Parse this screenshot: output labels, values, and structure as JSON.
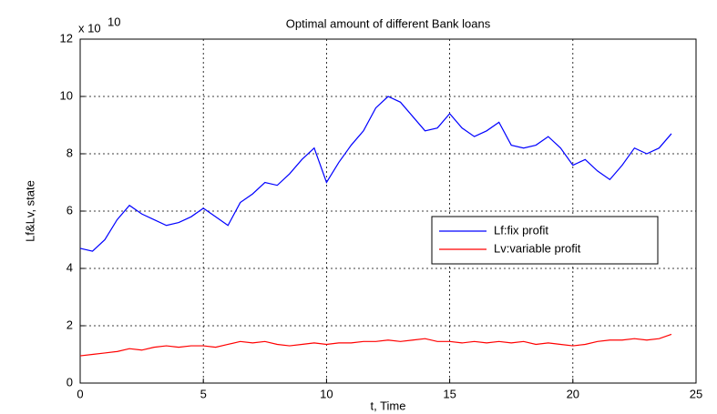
{
  "chart_data": {
    "type": "line",
    "title": "Optimal amount of different Bank loans",
    "xlabel": "t, Time",
    "ylabel": "Lf&Lv, state",
    "y_multiplier": {
      "base": "x 10",
      "exponent": "10"
    },
    "x": [
      0,
      0.5,
      1,
      1.5,
      2,
      2.5,
      3,
      3.5,
      4,
      4.5,
      5,
      5.5,
      6,
      6.5,
      7,
      7.5,
      8,
      8.5,
      9,
      9.5,
      10,
      10.5,
      11,
      11.5,
      12,
      12.5,
      13,
      13.5,
      14,
      14.5,
      15,
      15.5,
      16,
      16.5,
      17,
      17.5,
      18,
      18.5,
      19,
      19.5,
      20,
      20.5,
      21,
      21.5,
      22,
      22.5,
      23,
      23.5,
      24
    ],
    "series": [
      {
        "name": "Lf:fix profit",
        "color": "#0000ff",
        "values": [
          4.7,
          4.6,
          5.0,
          5.7,
          6.2,
          5.9,
          5.7,
          5.5,
          5.6,
          5.8,
          6.1,
          5.8,
          5.5,
          6.3,
          6.6,
          7.0,
          6.9,
          7.3,
          7.8,
          8.2,
          7.0,
          7.7,
          8.3,
          8.8,
          9.6,
          10.0,
          9.8,
          9.3,
          8.8,
          8.9,
          9.4,
          8.9,
          8.6,
          8.8,
          9.1,
          8.3,
          8.2,
          8.3,
          8.6,
          8.2,
          7.6,
          7.8,
          7.4,
          7.1,
          7.6,
          8.2,
          8.0,
          8.2,
          8.7
        ]
      },
      {
        "name": "Lv:variable profit",
        "color": "#ff0000",
        "values": [
          0.95,
          1.0,
          1.05,
          1.1,
          1.2,
          1.15,
          1.25,
          1.3,
          1.25,
          1.3,
          1.3,
          1.25,
          1.35,
          1.45,
          1.4,
          1.45,
          1.35,
          1.3,
          1.35,
          1.4,
          1.35,
          1.4,
          1.4,
          1.45,
          1.45,
          1.5,
          1.45,
          1.5,
          1.55,
          1.45,
          1.45,
          1.4,
          1.45,
          1.4,
          1.45,
          1.4,
          1.45,
          1.35,
          1.4,
          1.35,
          1.3,
          1.35,
          1.45,
          1.5,
          1.5,
          1.55,
          1.5,
          1.55,
          1.7
        ]
      }
    ],
    "xlim": [
      0,
      25
    ],
    "xticks": [
      0,
      5,
      10,
      15,
      20,
      25
    ],
    "ylim": [
      0,
      12
    ],
    "yticks": [
      0,
      2,
      4,
      6,
      8,
      10,
      12
    ],
    "grid": true,
    "legend": "east"
  }
}
